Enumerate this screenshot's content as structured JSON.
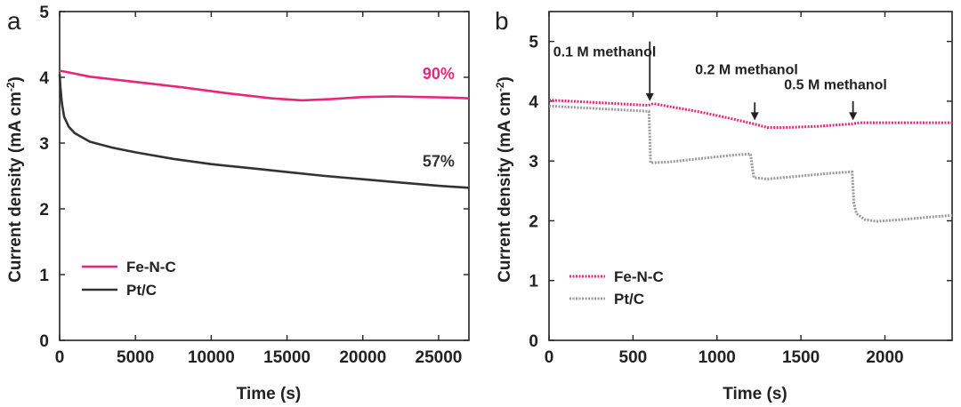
{
  "chart_data": [
    {
      "panel": "a",
      "type": "line",
      "xlabel": "Time (s)",
      "ylabel": "Current density (mA cm",
      "ylabel_sup": "-2",
      "ylabel_close": ")",
      "xlim": [
        0,
        27000
      ],
      "ylim": [
        0,
        5
      ],
      "xticks": [
        0,
        5000,
        10000,
        15000,
        20000,
        25000
      ],
      "yticks": [
        0,
        1,
        2,
        3,
        4,
        5
      ],
      "grid": false,
      "legend": "bottom-left",
      "series": [
        {
          "name": "Fe-N-C",
          "color": "#e8267a",
          "style": "solid",
          "x": [
            0,
            500,
            2000,
            5000,
            8000,
            11000,
            14000,
            16000,
            18000,
            20000,
            22000,
            24000,
            26000,
            27000
          ],
          "y": [
            4.1,
            4.08,
            4.01,
            3.93,
            3.85,
            3.76,
            3.68,
            3.65,
            3.67,
            3.7,
            3.71,
            3.7,
            3.69,
            3.68
          ]
        },
        {
          "name": "Pt/C",
          "color": "#333333",
          "style": "solid",
          "x": [
            0,
            50,
            150,
            300,
            600,
            1000,
            2000,
            3500,
            5000,
            7500,
            10000,
            12500,
            15000,
            17500,
            20000,
            22500,
            25000,
            27000
          ],
          "y": [
            4.05,
            3.85,
            3.6,
            3.4,
            3.25,
            3.15,
            3.02,
            2.93,
            2.86,
            2.76,
            2.68,
            2.62,
            2.56,
            2.5,
            2.45,
            2.4,
            2.35,
            2.32
          ]
        }
      ],
      "annotations": [
        {
          "text": "90%",
          "color": "#e8267a",
          "x": 25000,
          "y": 3.97
        },
        {
          "text": "57%",
          "color": "#333333",
          "x": 25000,
          "y": 2.64
        }
      ]
    },
    {
      "panel": "b",
      "type": "line",
      "xlabel": "Time (s)",
      "ylabel": "Current density (mA cm",
      "ylabel_sup": "-2",
      "ylabel_close": ")",
      "xlim": [
        0,
        2400
      ],
      "ylim": [
        0,
        5.5
      ],
      "xticks": [
        0,
        500,
        1000,
        1500,
        2000
      ],
      "yticks": [
        0,
        1,
        2,
        3,
        4,
        5
      ],
      "grid": false,
      "legend": "bottom-left",
      "series": [
        {
          "name": "Fe-N-C",
          "color": "#e8267a",
          "style": "dotted",
          "x": [
            0,
            200,
            400,
            590,
            620,
            700,
            900,
            1100,
            1220,
            1300,
            1400,
            1600,
            1800,
            1850,
            2000,
            2200,
            2400
          ],
          "y": [
            4.02,
            3.99,
            3.96,
            3.93,
            3.96,
            3.92,
            3.82,
            3.7,
            3.62,
            3.56,
            3.56,
            3.58,
            3.62,
            3.64,
            3.64,
            3.64,
            3.64
          ]
        },
        {
          "name": "Pt/C",
          "color": "#999999",
          "style": "dotted",
          "x": [
            0,
            200,
            400,
            595,
            605,
            700,
            900,
            1100,
            1200,
            1210,
            1220,
            1300,
            1500,
            1700,
            1805,
            1815,
            1830,
            1880,
            1950,
            2100,
            2300,
            2400
          ],
          "y": [
            3.92,
            3.89,
            3.86,
            3.83,
            2.97,
            2.98,
            3.04,
            3.1,
            3.12,
            2.9,
            2.72,
            2.7,
            2.75,
            2.8,
            2.82,
            2.3,
            2.12,
            2.02,
            1.99,
            2.02,
            2.07,
            2.09
          ]
        }
      ],
      "annotations": [
        {
          "text": "0.1 M methanol",
          "arrow_x": 600,
          "arrow_y_from": 5.0,
          "arrow_y_to": 4.0,
          "text_x": 25,
          "text_y": 4.75
        },
        {
          "text": "0.2 M methanol",
          "arrow_x": 1225,
          "arrow_y_from": 3.98,
          "arrow_y_to": 3.68,
          "text_x": 870,
          "text_y": 4.45
        },
        {
          "text": "0.5 M methanol",
          "arrow_x": 1810,
          "arrow_y_from": 4.0,
          "arrow_y_to": 3.68,
          "text_x": 1400,
          "text_y": 4.2
        }
      ]
    }
  ]
}
